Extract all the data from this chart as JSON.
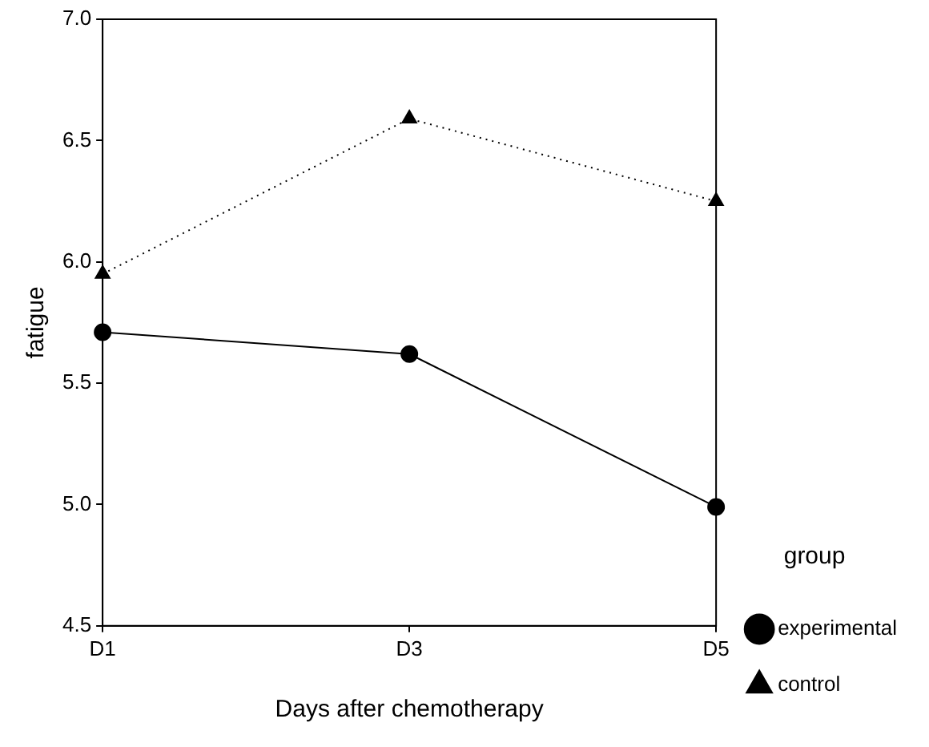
{
  "chart_data": {
    "type": "line",
    "xlabel": "Days after chemotherapy",
    "ylabel": "fatigue",
    "legend_title": "group",
    "categories": [
      "D1",
      "D3",
      "D5"
    ],
    "series": [
      {
        "name": "experimental",
        "color": "#000000",
        "values": [
          5.71,
          5.62,
          4.99
        ],
        "marker": "circle",
        "line_style": "solid"
      },
      {
        "name": "control",
        "color": "#000000",
        "values": [
          5.95,
          6.59,
          6.25
        ],
        "marker": "triangle",
        "line_style": "dotted"
      }
    ],
    "ylim": [
      4.5,
      7.0
    ],
    "yticks": [
      4.5,
      {
        "value": 5,
        "label": "5.0"
      },
      5.5,
      {
        "value": 6,
        "label": "6.0"
      },
      6.5,
      {
        "value": 7,
        "label": "7.0"
      }
    ],
    "legend": "right"
  }
}
